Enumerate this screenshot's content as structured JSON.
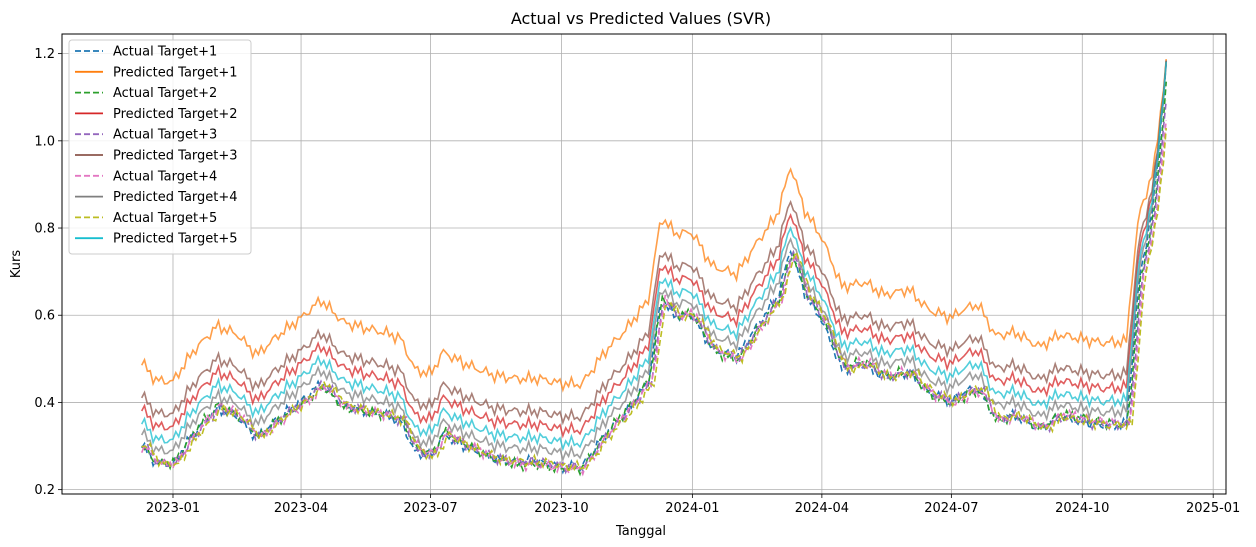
{
  "chart_data": {
    "type": "line",
    "title": "Actual vs Predicted Values (SVR)",
    "xlabel": "Tanggal",
    "ylabel": "Kurs",
    "ylim": [
      0.19,
      1.245
    ],
    "xlim": [
      "2022-10-15",
      "2025-01-10"
    ],
    "grid": true,
    "legend_placement": "top-left",
    "x_ticks": [
      "2023-01",
      "2023-04",
      "2023-07",
      "2023-10",
      "2024-01",
      "2024-04",
      "2024-07",
      "2024-10",
      "2025-01"
    ],
    "y_ticks": [
      0.2,
      0.4,
      0.6,
      0.8,
      1.0,
      1.2
    ],
    "y_tick_labels": [
      "0.2",
      "0.4",
      "0.6",
      "0.8",
      "1.0",
      "1.2"
    ],
    "x": [
      "2022-12-10",
      "2022-12-20",
      "2023-01-01",
      "2023-01-15",
      "2023-02-01",
      "2023-02-15",
      "2023-03-01",
      "2023-03-15",
      "2023-04-01",
      "2023-04-15",
      "2023-05-01",
      "2023-05-15",
      "2023-06-01",
      "2023-06-10",
      "2023-06-20",
      "2023-07-01",
      "2023-07-10",
      "2023-07-20",
      "2023-08-01",
      "2023-08-15",
      "2023-09-01",
      "2023-09-15",
      "2023-10-01",
      "2023-10-15",
      "2023-11-01",
      "2023-11-15",
      "2023-12-01",
      "2023-12-10",
      "2023-12-20",
      "2024-01-01",
      "2024-01-15",
      "2024-02-01",
      "2024-02-15",
      "2024-03-01",
      "2024-03-10",
      "2024-03-20",
      "2024-04-01",
      "2024-04-15",
      "2024-05-01",
      "2024-05-15",
      "2024-06-01",
      "2024-06-15",
      "2024-07-01",
      "2024-07-10",
      "2024-07-20",
      "2024-08-01",
      "2024-08-15",
      "2024-09-01",
      "2024-09-15",
      "2024-10-01",
      "2024-10-15",
      "2024-11-01",
      "2024-11-10",
      "2024-11-20",
      "2024-11-30"
    ],
    "series": [
      {
        "name": "Actual Target+1",
        "color": "#1f77b4",
        "style": "dashed",
        "offset": 0.0
      },
      {
        "name": "Predicted Target+1",
        "color": "#ff7f0e",
        "style": "solid",
        "offset": 0.19
      },
      {
        "name": "Actual Target+2",
        "color": "#2ca02c",
        "style": "dashed",
        "offset": 0.0
      },
      {
        "name": "Predicted Target+2",
        "color": "#d62728",
        "style": "solid",
        "offset": 0.085
      },
      {
        "name": "Actual Target+3",
        "color": "#9467bd",
        "style": "dashed",
        "offset": 0.0
      },
      {
        "name": "Predicted Target+3",
        "color": "#8c564b",
        "style": "solid",
        "offset": 0.115
      },
      {
        "name": "Actual Target+4",
        "color": "#e377c2",
        "style": "dashed",
        "offset": 0.0
      },
      {
        "name": "Predicted Target+4",
        "color": "#7f7f7f",
        "style": "solid",
        "offset": 0.03
      },
      {
        "name": "Actual Target+5",
        "color": "#bcbd22",
        "style": "dashed",
        "offset": 0.0
      },
      {
        "name": "Predicted Target+5",
        "color": "#17becf",
        "style": "solid",
        "offset": 0.055
      }
    ],
    "base_values": [
      0.3,
      0.26,
      0.26,
      0.33,
      0.39,
      0.37,
      0.32,
      0.36,
      0.4,
      0.44,
      0.39,
      0.38,
      0.37,
      0.36,
      0.29,
      0.28,
      0.33,
      0.31,
      0.29,
      0.27,
      0.26,
      0.26,
      0.25,
      0.25,
      0.33,
      0.38,
      0.45,
      0.64,
      0.6,
      0.6,
      0.52,
      0.5,
      0.57,
      0.64,
      0.75,
      0.65,
      0.59,
      0.48,
      0.49,
      0.46,
      0.47,
      0.42,
      0.4,
      0.42,
      0.43,
      0.36,
      0.37,
      0.34,
      0.37,
      0.36,
      0.35,
      0.35,
      0.68,
      0.85,
      1.2
    ],
    "actual_shifts_days": [
      0,
      1,
      2,
      3,
      4
    ]
  }
}
